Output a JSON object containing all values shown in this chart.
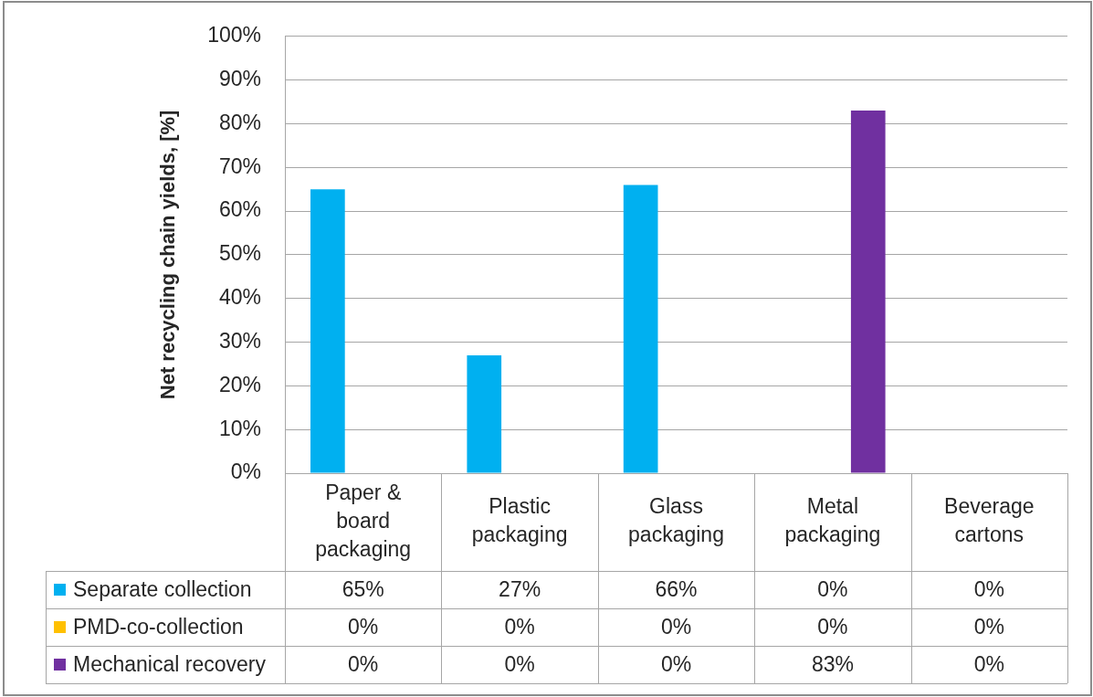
{
  "chart_data": {
    "type": "bar",
    "ylabel": "Net recycling chain yields, [%]",
    "categories": [
      "Paper & board packaging",
      "Plastic packaging",
      "Glass packaging",
      "Metal packaging",
      "Beverage cartons"
    ],
    "series": [
      {
        "name": "Separate collection",
        "color": "#00b0f0",
        "values": [
          65,
          27,
          66,
          0,
          0
        ],
        "value_labels": [
          "65%",
          "27%",
          "66%",
          "0%",
          "0%"
        ]
      },
      {
        "name": "PMD-co-collection",
        "color": "#ffc000",
        "values": [
          0,
          0,
          0,
          0,
          0
        ],
        "value_labels": [
          "0%",
          "0%",
          "0%",
          "0%",
          "0%"
        ]
      },
      {
        "name": "Mechanical recovery",
        "color": "#7030a0",
        "values": [
          0,
          0,
          0,
          83,
          0
        ],
        "value_labels": [
          "0%",
          "0%",
          "0%",
          "83%",
          "0%"
        ]
      }
    ],
    "ylim": [
      0,
      100
    ],
    "yticks": [
      {
        "value": 0,
        "label": "0%"
      },
      {
        "value": 10,
        "label": "10%"
      },
      {
        "value": 20,
        "label": "20%"
      },
      {
        "value": 30,
        "label": "30%"
      },
      {
        "value": 40,
        "label": "40%"
      },
      {
        "value": 50,
        "label": "50%"
      },
      {
        "value": 60,
        "label": "60%"
      },
      {
        "value": 70,
        "label": "70%"
      },
      {
        "value": 80,
        "label": "80%"
      },
      {
        "value": 90,
        "label": "90%"
      },
      {
        "value": 100,
        "label": "100%"
      }
    ],
    "grid": "y",
    "legend": "bottom left"
  }
}
